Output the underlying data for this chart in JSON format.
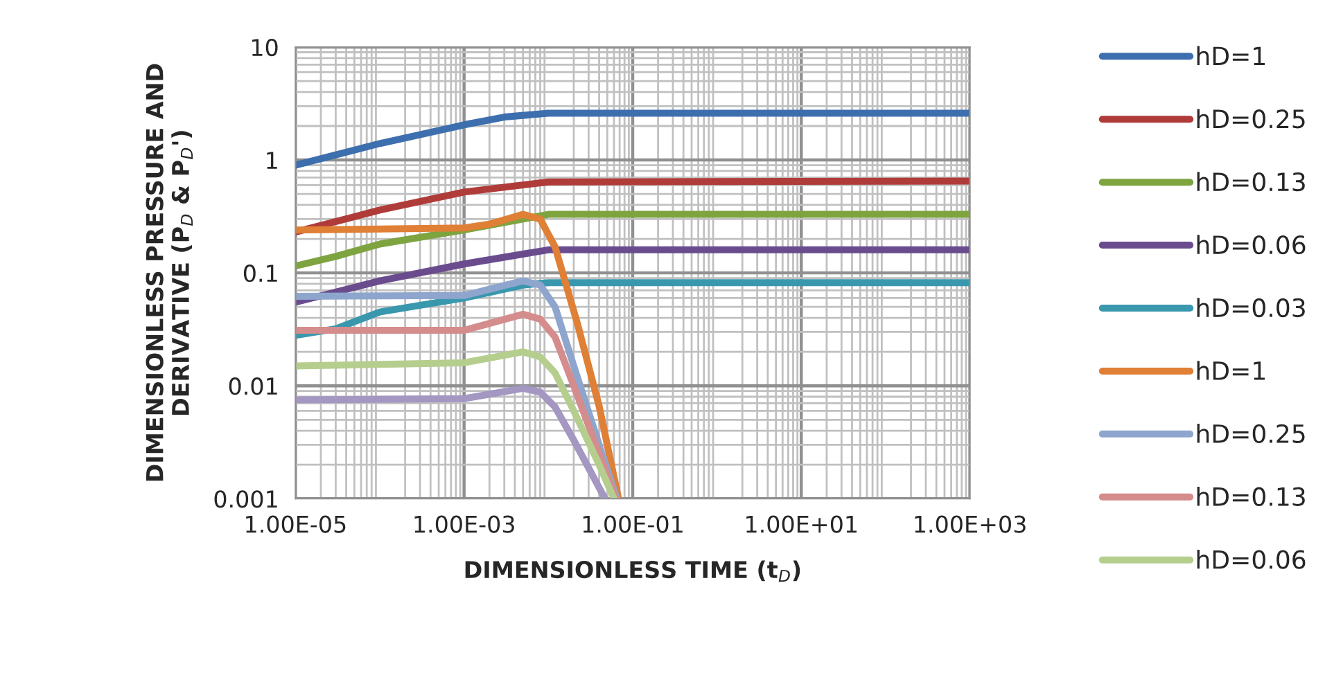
{
  "chart_data": {
    "type": "line",
    "xlabel": "DIMENSIONLESS TIME (t$_{D}$)",
    "ylabel": "DIMENSIONLESS PRESSURE AND\nDERIVATIVE (P$_{D}$ & P$_{D}$')",
    "log": "xy",
    "grid": true,
    "legend": "right",
    "line_style": "solid",
    "marker": "none",
    "xlim": [
      1e-05,
      1000
    ],
    "ylim": [
      0.001,
      10
    ],
    "xticks": [
      {
        "value": 1e-05,
        "label": "1.00E-05"
      },
      {
        "value": 0.001,
        "label": "1.00E-03"
      },
      {
        "value": 0.1,
        "label": "1.00E-01"
      },
      {
        "value": 10,
        "label": "1.00E+01"
      },
      {
        "value": 1000,
        "label": "1.00E+03"
      }
    ],
    "yticks": [
      0.001,
      0.01,
      0.1,
      1,
      10
    ],
    "series": [
      {
        "name": "hD=1",
        "color": "#3d6fae",
        "x": [
          1e-05,
          0.0001,
          0.001,
          0.003,
          0.01,
          1000
        ],
        "values": [
          0.9,
          1.4,
          2.05,
          2.4,
          2.6,
          2.6
        ]
      },
      {
        "name": "hD=0.25",
        "color": "#b03c3a",
        "x": [
          1e-05,
          0.0001,
          0.001,
          0.01,
          1000
        ],
        "values": [
          0.23,
          0.36,
          0.52,
          0.64,
          0.65
        ]
      },
      {
        "name": "hD=0.13",
        "color": "#7ea440",
        "x": [
          1e-05,
          3e-05,
          0.0001,
          0.001,
          0.005,
          0.01,
          1000
        ],
        "values": [
          0.115,
          0.14,
          0.18,
          0.24,
          0.3,
          0.33,
          0.33
        ]
      },
      {
        "name": "hD=0.06",
        "color": "#6a4c8e",
        "x": [
          1e-05,
          0.0001,
          0.001,
          0.01,
          1000
        ],
        "values": [
          0.055,
          0.085,
          0.12,
          0.16,
          0.16
        ]
      },
      {
        "name": "hD=0.03",
        "color": "#3a98ae",
        "x": [
          1e-05,
          3e-05,
          0.0001,
          0.001,
          0.005,
          0.01,
          1000
        ],
        "values": [
          0.028,
          0.032,
          0.045,
          0.06,
          0.078,
          0.082,
          0.082
        ]
      },
      {
        "name": "hD=1",
        "color": "#e07f36",
        "x": [
          1e-05,
          0.001,
          0.002,
          0.005,
          0.008,
          0.012,
          0.022,
          0.04,
          0.068
        ],
        "values": [
          0.24,
          0.25,
          0.27,
          0.33,
          0.3,
          0.17,
          0.036,
          0.0066,
          0.001
        ]
      },
      {
        "name": "hD=0.25",
        "color": "#8ea6ce",
        "x": [
          1e-05,
          0.001,
          0.005,
          0.008,
          0.012,
          0.02,
          0.04,
          0.065
        ],
        "values": [
          0.062,
          0.063,
          0.085,
          0.078,
          0.05,
          0.015,
          0.003,
          0.001
        ]
      },
      {
        "name": "hD=0.13",
        "color": "#d48c8c",
        "x": [
          1e-05,
          0.001,
          0.005,
          0.008,
          0.012,
          0.02,
          0.04,
          0.063
        ],
        "values": [
          0.031,
          0.031,
          0.043,
          0.039,
          0.027,
          0.01,
          0.0025,
          0.001
        ]
      },
      {
        "name": "hD=0.06",
        "color": "#b5ce8e",
        "x": [
          1e-05,
          0.001,
          0.005,
          0.008,
          0.012,
          0.02,
          0.04,
          0.06
        ],
        "values": [
          0.015,
          0.016,
          0.02,
          0.018,
          0.013,
          0.006,
          0.002,
          0.001
        ]
      },
      {
        "color": "#a497c2",
        "x": [
          1e-05,
          0.001,
          0.005,
          0.008,
          0.012,
          0.02,
          0.047
        ],
        "values": [
          0.0075,
          0.0077,
          0.0095,
          0.0088,
          0.0065,
          0.0033,
          0.001
        ]
      }
    ]
  }
}
